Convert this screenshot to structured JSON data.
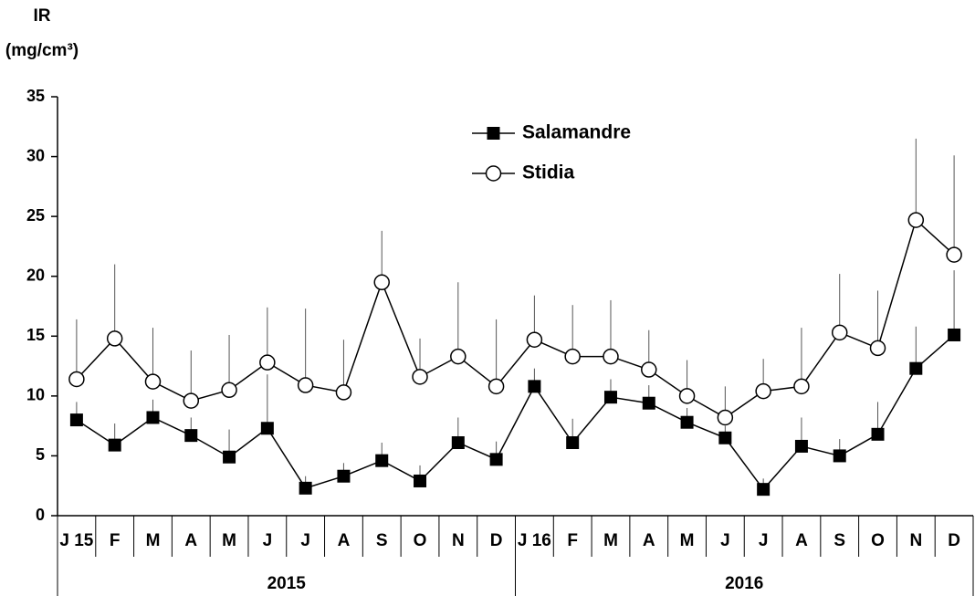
{
  "chart_data": {
    "type": "line",
    "ylabel": [
      "IR",
      "(mg/cm³)"
    ],
    "categories": [
      "J 15",
      "F",
      "M",
      "A",
      "M",
      "J",
      "J",
      "A",
      "S",
      "O",
      "N",
      "D",
      "J 16",
      "F",
      "M",
      "A",
      "M",
      "J",
      "J",
      "A",
      "S",
      "O",
      "N",
      "D"
    ],
    "groups": [
      "2015",
      "2016"
    ],
    "series": [
      {
        "name": "Salamandre",
        "color": "#000000",
        "marker": "square",
        "values": [
          8.0,
          5.9,
          8.2,
          6.7,
          4.9,
          7.3,
          2.3,
          3.3,
          4.6,
          2.9,
          6.1,
          4.7,
          10.8,
          6.1,
          9.9,
          9.4,
          7.8,
          6.5,
          2.2,
          5.8,
          5.0,
          6.8,
          12.3,
          15.1
        ],
        "errors": [
          1.5,
          1.8,
          1.5,
          1.5,
          2.3,
          4.5,
          1.0,
          1.1,
          1.5,
          1.3,
          2.1,
          1.5,
          1.5,
          2.0,
          1.5,
          1.5,
          1.2,
          1.0,
          0.9,
          2.4,
          1.4,
          2.7,
          3.5,
          5.4
        ]
      },
      {
        "name": "Stidia",
        "color": "#000000",
        "marker": "circle",
        "values": [
          11.4,
          14.8,
          11.2,
          9.6,
          10.5,
          12.8,
          10.9,
          10.3,
          19.5,
          11.6,
          13.3,
          10.8,
          14.7,
          13.3,
          13.3,
          12.2,
          10.0,
          8.2,
          10.4,
          10.8,
          15.3,
          14.0,
          24.7,
          21.8
        ],
        "errors": [
          5.0,
          6.2,
          4.5,
          4.2,
          4.6,
          4.6,
          6.4,
          4.4,
          4.3,
          3.2,
          6.2,
          5.6,
          3.7,
          4.3,
          4.7,
          3.3,
          3.0,
          2.6,
          2.7,
          4.9,
          4.9,
          4.8,
          6.8,
          8.3
        ]
      }
    ],
    "ylim": [
      0,
      35
    ],
    "yticks": [
      0,
      5,
      10,
      15,
      20,
      25,
      30,
      35
    ],
    "legend": "top-center"
  }
}
